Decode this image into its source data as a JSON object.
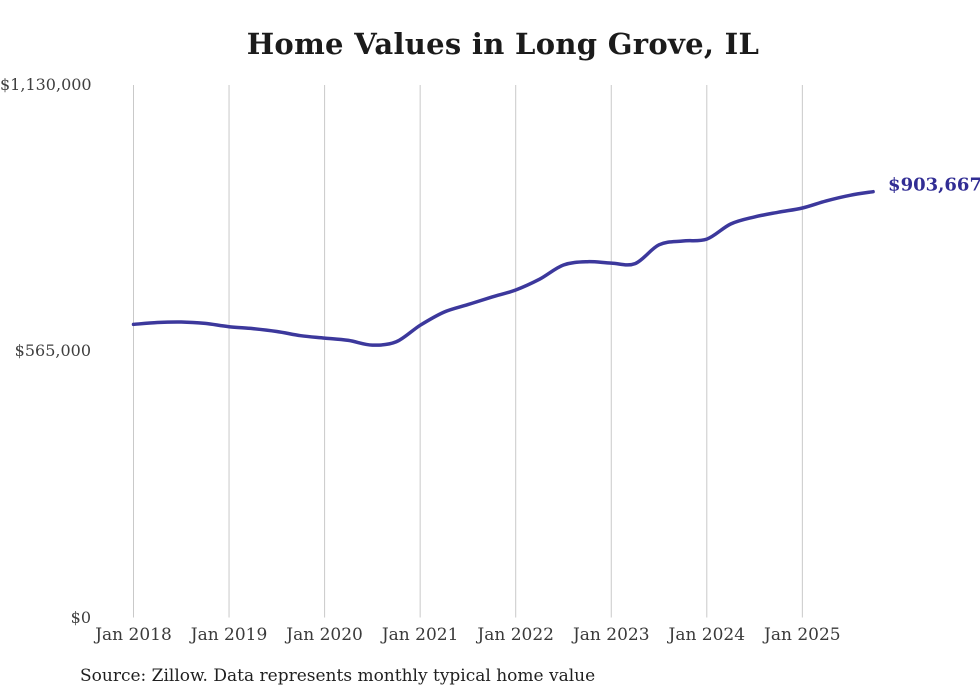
{
  "chart_data": {
    "type": "line",
    "title": "Home Values in Long Grove, IL",
    "source_note": "Source: Zillow. Data represents monthly typical home value",
    "xlabel": "",
    "ylabel": "",
    "ylim": [
      0,
      1130000
    ],
    "grid": "vertical-gridlines-only",
    "legend": "none",
    "background_color": "#ffffff",
    "gridline_color": "#c9c9c9",
    "y_ticks": [
      {
        "label": "$1,130,000",
        "value": 1130000
      },
      {
        "label": "$565,000",
        "value": 565000
      },
      {
        "label": "$0",
        "value": 0
      }
    ],
    "x_ticks": [
      {
        "label": "Jan 2018",
        "t": 0
      },
      {
        "label": "Jan 2019",
        "t": 1
      },
      {
        "label": "Jan 2020",
        "t": 2
      },
      {
        "label": "Jan 2021",
        "t": 3
      },
      {
        "label": "Jan 2022",
        "t": 4
      },
      {
        "label": "Jan 2023",
        "t": 5
      },
      {
        "label": "Jan 2024",
        "t": 6
      },
      {
        "label": "Jan 2025",
        "t": 7
      }
    ],
    "x_unit": "years since Jan 2018, monthly data",
    "series": [
      {
        "name": "Typical home value",
        "color": "#3c389c",
        "points": [
          [
            0.0,
            622000
          ],
          [
            0.25,
            626000
          ],
          [
            0.5,
            627000
          ],
          [
            0.75,
            624000
          ],
          [
            1.0,
            617000
          ],
          [
            1.25,
            613000
          ],
          [
            1.5,
            607000
          ],
          [
            1.75,
            598000
          ],
          [
            2.0,
            593000
          ],
          [
            2.25,
            588000
          ],
          [
            2.5,
            578000
          ],
          [
            2.75,
            585000
          ],
          [
            3.0,
            620000
          ],
          [
            3.25,
            648000
          ],
          [
            3.5,
            664000
          ],
          [
            3.75,
            680000
          ],
          [
            4.0,
            695000
          ],
          [
            4.25,
            718000
          ],
          [
            4.5,
            748000
          ],
          [
            4.75,
            755000
          ],
          [
            5.0,
            752000
          ],
          [
            5.25,
            751000
          ],
          [
            5.5,
            791000
          ],
          [
            5.75,
            799000
          ],
          [
            6.0,
            803000
          ],
          [
            6.25,
            835000
          ],
          [
            6.5,
            850000
          ],
          [
            6.75,
            860000
          ],
          [
            7.0,
            869000
          ],
          [
            7.25,
            884000
          ],
          [
            7.5,
            896000
          ],
          [
            7.74,
            903667
          ]
        ]
      }
    ],
    "end_label": {
      "text": "$903,667",
      "value": 903667,
      "color": "#312d94"
    }
  }
}
